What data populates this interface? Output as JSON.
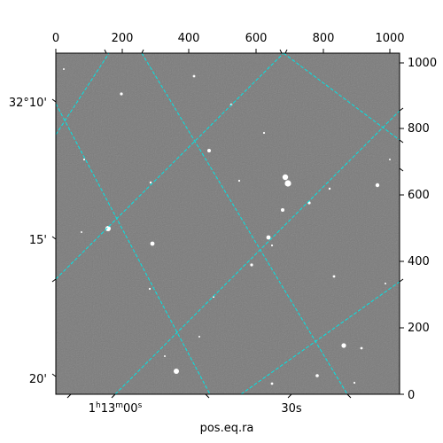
{
  "figure": {
    "xlabel": "pos.eq.ra",
    "pixel_x_ticks": [
      "0",
      "200",
      "400",
      "600",
      "800",
      "1000"
    ],
    "pixel_y_ticks": [
      "0",
      "200",
      "400",
      "600",
      "800",
      "1000"
    ],
    "ra_ticks": [
      "1h13m00s",
      "30s"
    ],
    "dec_ticks": [
      "32°10'",
      "15'",
      "20'"
    ],
    "colors": {
      "background": "#7a7a7a",
      "grid": "#00e5e5",
      "stars": "#ffffff"
    }
  }
}
